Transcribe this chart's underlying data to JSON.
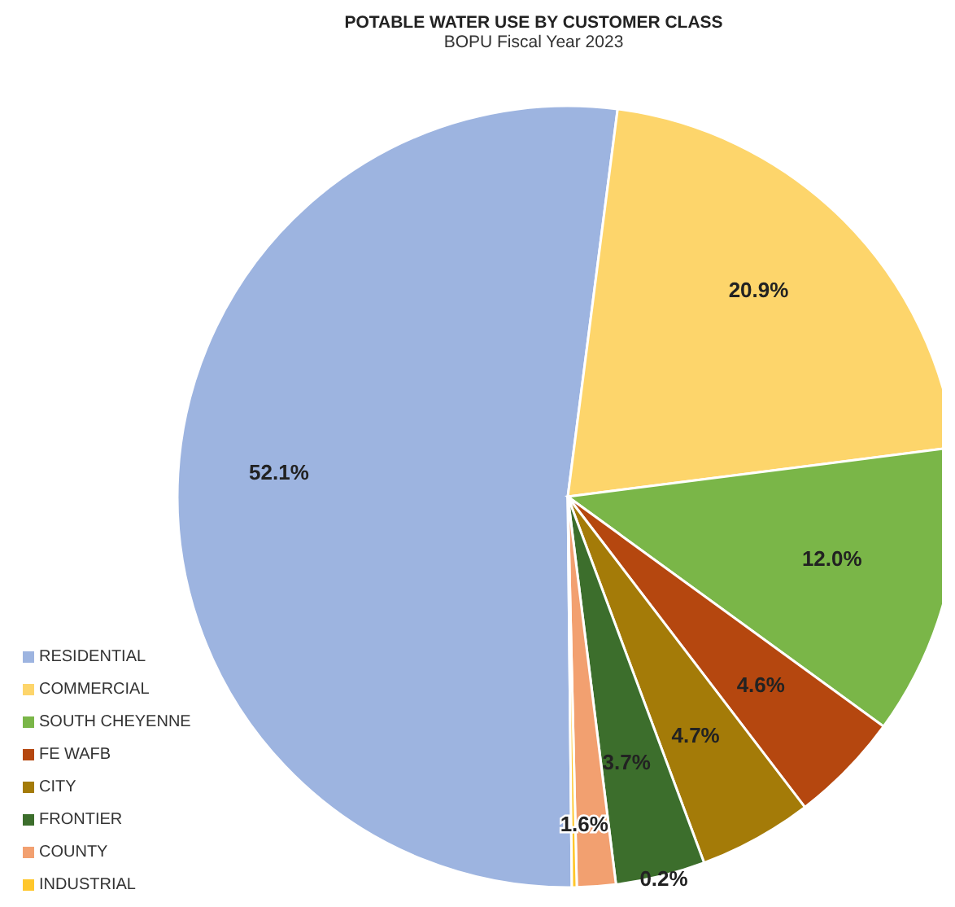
{
  "chart_data": {
    "type": "pie",
    "title": "POTABLE WATER USE BY CUSTOMER CLASS",
    "subtitle": "BOPU Fiscal Year 2023",
    "categories": [
      "RESIDENTIAL",
      "COMMERCIAL",
      "SOUTH CHEYENNE",
      "FE WAFB",
      "CITY",
      "FRONTIER",
      "COUNTY",
      "INDUSTRIAL"
    ],
    "values": [
      52.1,
      20.9,
      12.0,
      4.6,
      4.7,
      3.7,
      1.6,
      0.2
    ],
    "value_labels": [
      "52.1%",
      "20.9%",
      "12.0%",
      "4.6%",
      "4.7%",
      "3.7%",
      "1.6%",
      "0.2%"
    ],
    "colors": [
      "#9db4e0",
      "#fdd56b",
      "#7ab648",
      "#b5470f",
      "#a47b08",
      "#3c6e2c",
      "#f2a070",
      "#ffc72c"
    ],
    "legend": "bottom left"
  }
}
